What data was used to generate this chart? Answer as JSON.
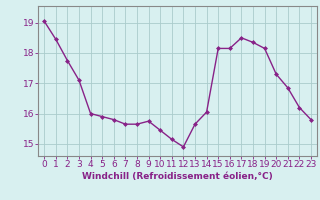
{
  "x": [
    0,
    1,
    2,
    3,
    4,
    5,
    6,
    7,
    8,
    9,
    10,
    11,
    12,
    13,
    14,
    15,
    16,
    17,
    18,
    19,
    20,
    21,
    22,
    23
  ],
  "y": [
    19.05,
    18.45,
    17.75,
    17.1,
    16.0,
    15.9,
    15.8,
    15.65,
    15.65,
    15.75,
    15.45,
    15.15,
    14.9,
    15.65,
    16.05,
    18.15,
    18.15,
    18.5,
    18.35,
    18.15,
    17.3,
    16.85,
    16.2,
    15.8
  ],
  "line_color": "#882288",
  "marker": "D",
  "marker_size": 2,
  "line_width": 1.0,
  "bg_color": "#d8f0f0",
  "grid_color": "#aacccc",
  "xlabel": "Windchill (Refroidissement éolien,°C)",
  "xlabel_fontsize": 6.5,
  "tick_fontsize": 6.5,
  "ylabel_ticks": [
    15,
    16,
    17,
    18,
    19
  ],
  "ylim": [
    14.6,
    19.55
  ],
  "xlim": [
    -0.5,
    23.5
  ],
  "spine_color": "#888888"
}
